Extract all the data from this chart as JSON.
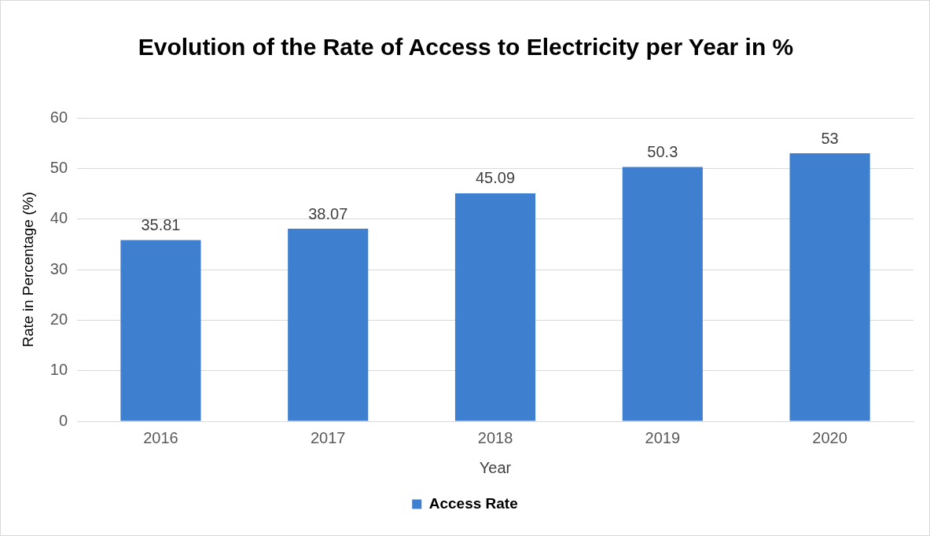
{
  "chart_data": {
    "type": "bar",
    "title": "Evolution of the Rate of Access to Electricity per Year in %",
    "xlabel": "Year",
    "ylabel": "Rate in Percentage (%)",
    "categories": [
      "2016",
      "2017",
      "2018",
      "2019",
      "2020"
    ],
    "series": [
      {
        "name": "Access Rate",
        "color": "#3f7fd0",
        "values": [
          35.81,
          38.07,
          45.09,
          50.3,
          53
        ]
      }
    ],
    "ylim": [
      0,
      60
    ],
    "yticks": [
      0,
      10,
      20,
      30,
      40,
      50,
      60
    ],
    "grid": "y",
    "legend": "bottom",
    "data_labels": true
  }
}
